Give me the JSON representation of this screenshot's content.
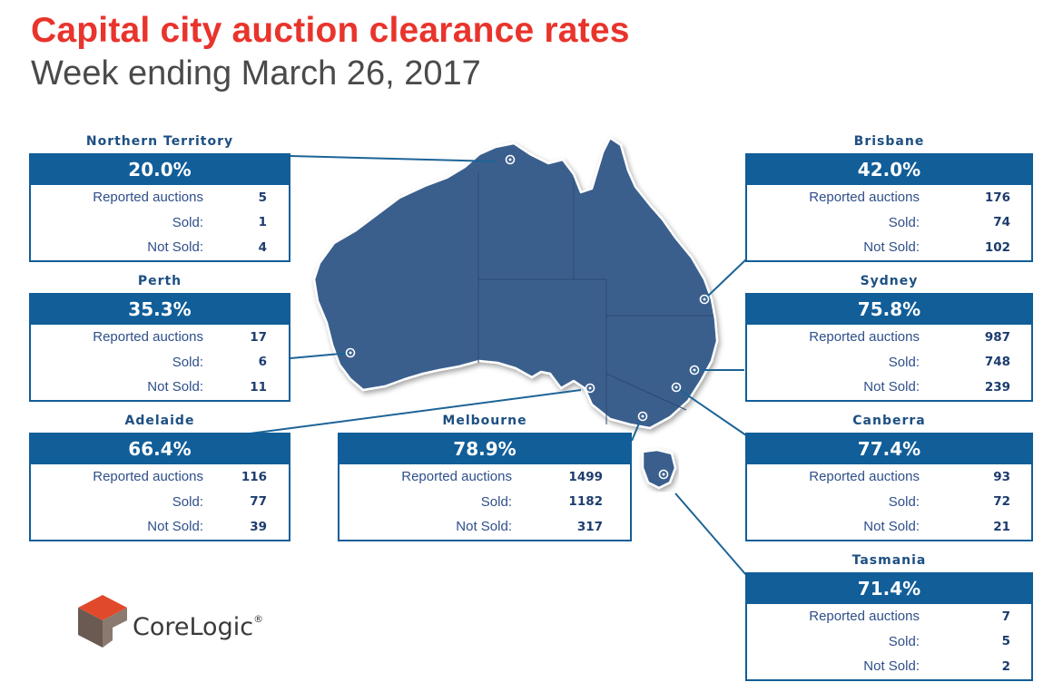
{
  "header": {
    "title": "Capital city auction clearance rates",
    "subtitle": "Week ending March 26, 2017"
  },
  "row_labels": {
    "reported": "Reported auctions",
    "sold": "Sold:",
    "not_sold": "Not Sold:"
  },
  "regions": [
    {
      "name": "Northern Territory",
      "rate": "20.0%",
      "reported": "5",
      "sold": "1",
      "not_sold": "4"
    },
    {
      "name": "Perth",
      "rate": "35.3%",
      "reported": "17",
      "sold": "6",
      "not_sold": "11"
    },
    {
      "name": "Adelaide",
      "rate": "66.4%",
      "reported": "116",
      "sold": "77",
      "not_sold": "39"
    },
    {
      "name": "Melbourne",
      "rate": "78.9%",
      "reported": "1499",
      "sold": "1182",
      "not_sold": "317"
    },
    {
      "name": "Brisbane",
      "rate": "42.0%",
      "reported": "176",
      "sold": "74",
      "not_sold": "102"
    },
    {
      "name": "Sydney",
      "rate": "75.8%",
      "reported": "987",
      "sold": "748",
      "not_sold": "239"
    },
    {
      "name": "Canberra",
      "rate": "77.4%",
      "reported": "93",
      "sold": "72",
      "not_sold": "21"
    },
    {
      "name": "Tasmania",
      "rate": "71.4%",
      "reported": "7",
      "sold": "5",
      "not_sold": "2"
    }
  ],
  "colors": {
    "title_red": "#e8342c",
    "card_blue": "#115e99",
    "map_fill": "#3a5f8d",
    "leader_line": "#1d6496"
  },
  "logo": {
    "brand_text": "CoreLogic",
    "mark": "registered-mark"
  }
}
